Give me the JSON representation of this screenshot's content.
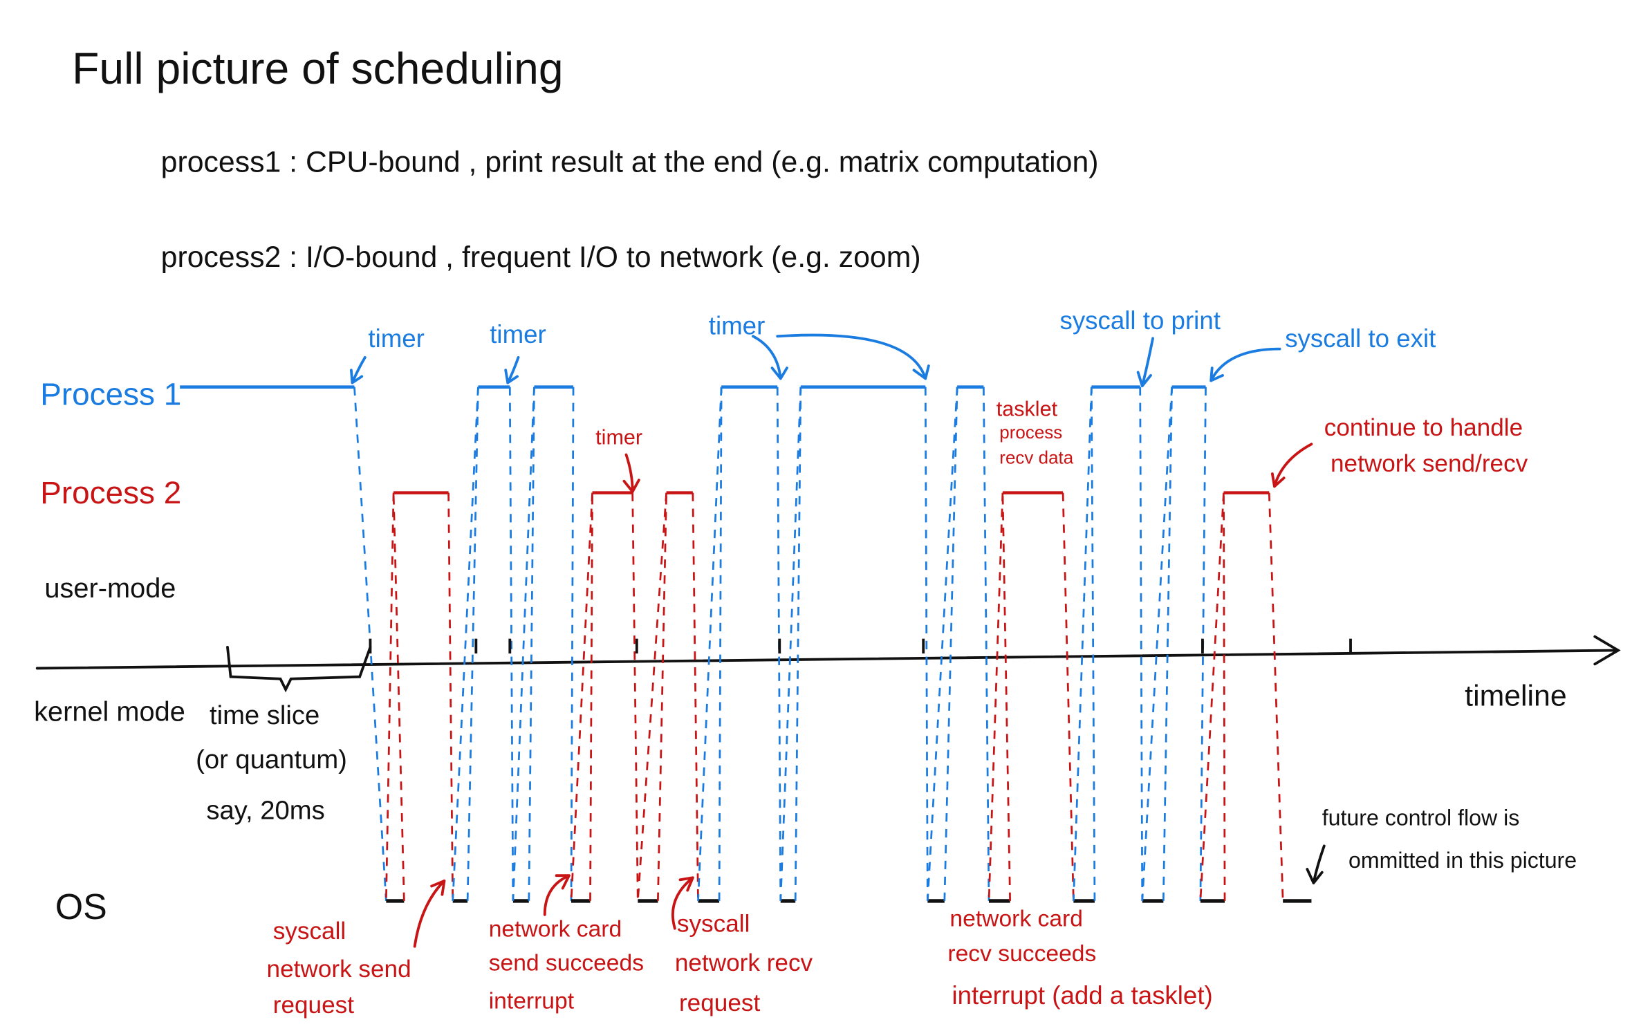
{
  "title": "Full picture of scheduling",
  "descriptions": [
    "process1 :  CPU-bound ,  print result at the end  (e.g. matrix computation)",
    "process2 :  I/O-bound ,  frequent I/O to network (e.g. zoom)"
  ],
  "lanes": {
    "process1": "Process 1",
    "process2": "Process 2",
    "user_mode": "user-mode",
    "kernel_mode": "kernel mode",
    "os": "OS",
    "timeline": "timeline"
  },
  "time_slice": [
    "time slice",
    "(or quantum)",
    "say, 20ms"
  ],
  "blue_notes": [
    "timer",
    "timer",
    "timer",
    "syscall to print",
    "syscall to exit"
  ],
  "red_notes": {
    "timer": "timer",
    "tasklet": [
      "tasklet",
      "process",
      "recv data"
    ],
    "continue": [
      "continue to handle",
      "network send/recv"
    ],
    "send_request": [
      "syscall",
      "network send",
      "request"
    ],
    "send_interrupt": [
      "network card",
      "send succeeds",
      "interrupt"
    ],
    "recv_request": [
      "syscall",
      "network recv",
      "request"
    ],
    "recv_interrupt": [
      "network card",
      "recv succeeds",
      "interrupt (add a tasklet)"
    ]
  },
  "future_note": [
    "future control flow is",
    "ommitted in this picture"
  ]
}
